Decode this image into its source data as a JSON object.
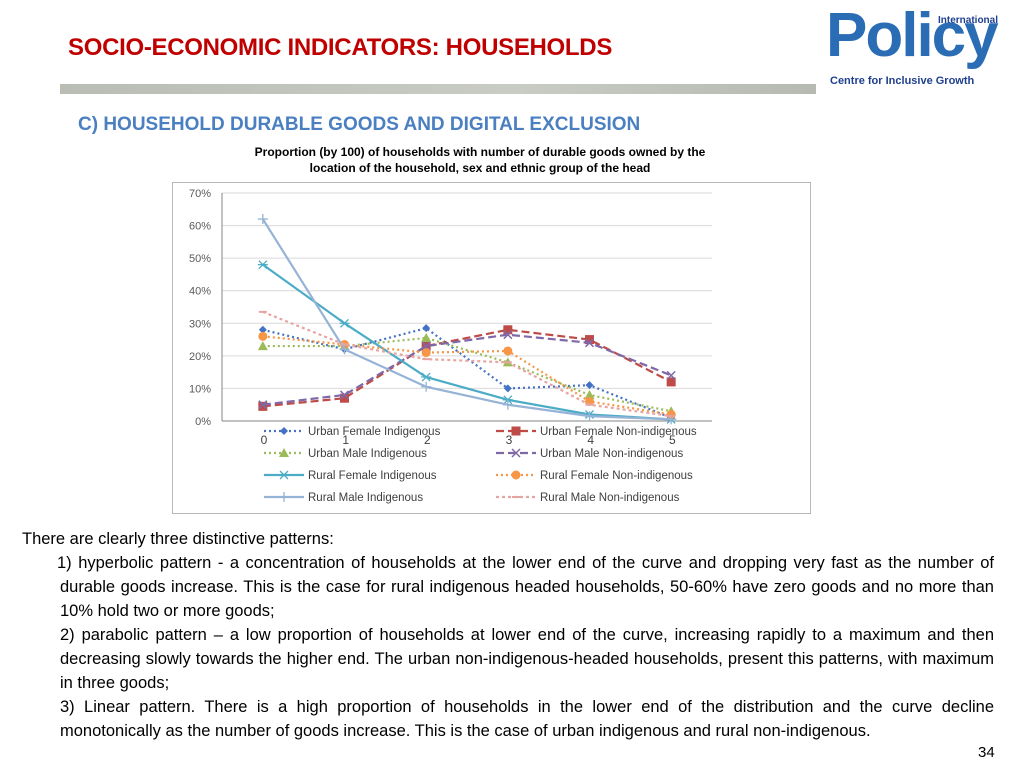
{
  "header": {
    "title": "SOCIO-ECONOMIC INDICATORS: HOUSEHOLDS",
    "logo_top": "International",
    "logo_word": "Policy",
    "logo_sub": "Centre for Inclusive Growth"
  },
  "section": {
    "subtitle": "C) HOUSEHOLD DURABLE GOODS AND DIGITAL EXCLUSION",
    "caption_line1": "Proportion (by 100) of households with number of durable goods owned by the",
    "caption_line2": "location of the household, sex and ethnic group of the head"
  },
  "chart_data": {
    "type": "line",
    "x": [
      0,
      1,
      2,
      3,
      4,
      5
    ],
    "ylim": [
      0,
      70
    ],
    "yticks": [
      "0%",
      "10%",
      "20%",
      "30%",
      "40%",
      "50%",
      "60%",
      "70%"
    ],
    "grid": true,
    "legend_position": "bottom",
    "series": [
      {
        "name": "Urban Female Indigenous",
        "color": "#4472c4",
        "dash": "2,3",
        "marker": "diamond",
        "values": [
          28,
          22,
          28.5,
          10,
          11,
          1
        ]
      },
      {
        "name": "Urban Female Non-indigenous",
        "color": "#be4b48",
        "dash": "8,4",
        "marker": "square",
        "values": [
          4.5,
          7,
          23,
          28,
          25,
          12
        ]
      },
      {
        "name": "Urban Male Indigenous",
        "color": "#9bbb59",
        "dash": "2,3",
        "marker": "triangle",
        "values": [
          23,
          23,
          25.5,
          18,
          8,
          3
        ]
      },
      {
        "name": "Urban Male Non-indigenous",
        "color": "#7f68a8",
        "dash": "8,4",
        "marker": "x",
        "values": [
          5,
          8,
          23,
          26.5,
          24,
          14
        ]
      },
      {
        "name": "Rural Female Indigenous",
        "color": "#4bacc6",
        "dash": "",
        "marker": "star",
        "values": [
          48,
          30,
          13.5,
          6.5,
          2,
          0.5
        ]
      },
      {
        "name": "Rural Female Non-indigenous",
        "color": "#f79646",
        "dash": "2,3",
        "marker": "circle",
        "values": [
          26,
          23.5,
          21,
          21.5,
          6,
          2
        ]
      },
      {
        "name": "Rural Male Indigenous",
        "color": "#95b3d7",
        "dash": "",
        "marker": "plus",
        "values": [
          62,
          22,
          10.5,
          5,
          1.5,
          0.5
        ]
      },
      {
        "name": "Rural Male Non-indigenous",
        "color": "#e6a5a3",
        "dash": "3,3",
        "marker": "dash",
        "values": [
          33.5,
          23.5,
          19,
          18,
          5,
          1.5
        ]
      }
    ]
  },
  "body": {
    "intro": "There are clearly three distinctive patterns:",
    "p1": "1) hyperbolic pattern - a concentration of households at the lower end of the curve and dropping very fast as the number of durable goods increase. This is the case for rural indigenous headed households, 50-60% have zero goods and no more than 10% hold two or more goods;",
    "p2": "2) parabolic pattern – a low proportion of households at lower end of the curve, increasing rapidly to a maximum and then decreasing slowly towards the higher end. The urban non-indigenous-headed households, present this patterns, with maximum in three goods;",
    "p3": "3) Linear pattern. There is a high proportion of households in the lower end of the distribution and the curve decline monotonically as the number of goods increase. This is the case of urban indigenous and rural non-indigenous."
  },
  "page_number": "34"
}
